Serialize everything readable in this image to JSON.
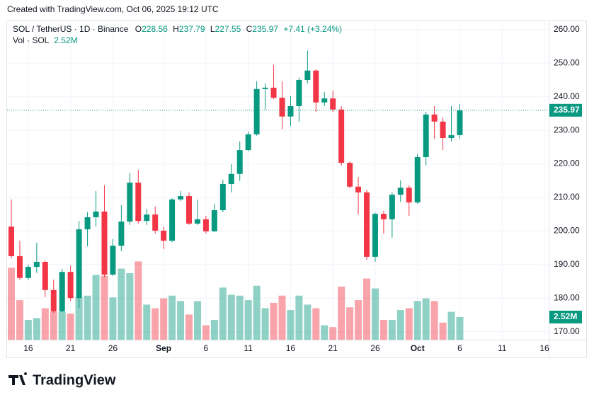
{
  "header": {
    "created": "Created with TradingView.com, Oct 06, 2025 19:12 UTC"
  },
  "brand": "TradingView",
  "chart_data": {
    "type": "candlestick",
    "legend": {
      "symbol": "SOL / TetherUS · 1D · Binance",
      "o": "O",
      "h": "H",
      "l": "L",
      "c": "C",
      "change": "+7.41 (+3.24%)",
      "vol": "Vol · SOL"
    },
    "x": [
      "Aug 14",
      "Aug 15",
      "Aug 16",
      "Aug 17",
      "Aug 18",
      "Aug 19",
      "Aug 20",
      "Aug 21",
      "Aug 22",
      "Aug 23",
      "Aug 24",
      "Aug 25",
      "Aug 26",
      "Aug 27",
      "Aug 28",
      "Aug 29",
      "Aug 30",
      "Aug 31",
      "Sep 1",
      "Sep 2",
      "Sep 3",
      "Sep 4",
      "Sep 5",
      "Sep 6",
      "Sep 7",
      "Sep 8",
      "Sep 9",
      "Sep 10",
      "Sep 11",
      "Sep 12",
      "Sep 13",
      "Sep 14",
      "Sep 15",
      "Sep 16",
      "Sep 17",
      "Sep 18",
      "Sep 19",
      "Sep 20",
      "Sep 21",
      "Sep 22",
      "Sep 23",
      "Sep 24",
      "Sep 25",
      "Sep 26",
      "Sep 27",
      "Sep 28",
      "Sep 29",
      "Sep 30",
      "Oct 1",
      "Oct 2",
      "Oct 3",
      "Oct 4",
      "Oct 5",
      "Oct 6"
    ],
    "open": [
      201.3,
      192.5,
      186.0,
      189.3,
      190.8,
      182.4,
      176.0,
      187.8,
      180.0,
      200.5,
      204.1,
      205.8,
      187.0,
      195.6,
      202.8,
      214.4,
      203.0,
      204.9,
      200.1,
      197.1,
      209.4,
      210.4,
      202.2,
      203.5,
      199.9,
      206.2,
      214.0,
      217.0,
      224.1,
      228.8,
      242.3,
      242.7,
      239.7,
      234.1,
      237.2,
      245.0,
      247.8,
      238.3,
      239.5,
      236.2,
      220.3,
      213.2,
      211.5,
      192.3,
      205.1,
      203.5,
      210.8,
      212.9,
      208.5,
      222.0,
      234.7,
      232.6,
      227.7,
      228.56
    ],
    "high": [
      209.4,
      197.1,
      190.0,
      196.5,
      191.2,
      185.5,
      188.7,
      189.7,
      203.0,
      205.6,
      211.9,
      213.6,
      197.6,
      207.7,
      217.2,
      218.2,
      206.6,
      207.3,
      201.3,
      209.8,
      211.9,
      211.4,
      209.4,
      204.5,
      208.1,
      215.3,
      219.9,
      226.7,
      229.6,
      244.6,
      244.0,
      249.5,
      244.6,
      240.2,
      245.7,
      253.7,
      248.2,
      241.4,
      241.9,
      237.2,
      220.7,
      216.1,
      212.3,
      205.5,
      206.0,
      211.5,
      215.1,
      213.6,
      222.9,
      235.5,
      237.2,
      233.8,
      237.2,
      237.79
    ],
    "low": [
      191.9,
      185.5,
      185.4,
      187.5,
      180.3,
      175.6,
      175.8,
      179.2,
      177.1,
      195.4,
      201.3,
      186.2,
      186.6,
      194.0,
      201.8,
      202.2,
      201.8,
      199.2,
      194.6,
      196.7,
      208.9,
      201.8,
      201.8,
      199.2,
      199.7,
      205.6,
      211.5,
      214.9,
      223.7,
      228.4,
      236.2,
      239.3,
      230.3,
      231.3,
      232.6,
      244.0,
      235.5,
      237.2,
      235.5,
      219.5,
      212.7,
      204.9,
      191.4,
      190.8,
      199.2,
      198.0,
      208.7,
      204.5,
      208.1,
      219.5,
      227.5,
      224.1,
      226.7,
      227.55
    ],
    "close": [
      192.5,
      186.0,
      189.3,
      190.8,
      182.4,
      176.0,
      187.8,
      180.0,
      200.5,
      204.1,
      205.8,
      187.0,
      195.6,
      202.8,
      214.4,
      203.0,
      204.9,
      200.1,
      197.1,
      209.4,
      210.4,
      202.2,
      203.5,
      199.9,
      206.2,
      214.0,
      217.0,
      224.1,
      228.8,
      242.3,
      242.7,
      239.7,
      234.1,
      237.2,
      245.0,
      247.8,
      238.3,
      239.5,
      236.2,
      220.3,
      213.2,
      211.5,
      192.3,
      205.1,
      203.5,
      210.8,
      212.9,
      208.5,
      222.0,
      234.7,
      232.6,
      227.7,
      228.56,
      235.97
    ],
    "volume": [
      8.0,
      4.4,
      2.2,
      2.4,
      3.5,
      3.1,
      3.1,
      2.9,
      4.7,
      4.9,
      7.2,
      7.1,
      4.7,
      7.9,
      7.4,
      8.7,
      3.9,
      3.5,
      4.6,
      4.9,
      4.3,
      2.8,
      4.3,
      1.6,
      2.2,
      5.8,
      5.0,
      4.9,
      4.4,
      6.0,
      3.5,
      4.1,
      4.9,
      3.3,
      4.9,
      3.9,
      3.5,
      1.6,
      1.4,
      5.9,
      3.6,
      4.4,
      6.8,
      5.7,
      2.2,
      2.2,
      3.3,
      3.5,
      4.3,
      4.6,
      4.3,
      1.9,
      3.1,
      2.52
    ],
    "volume_label": "2.52M",
    "volume_lim": [
      0,
      35.4
    ],
    "up_color": "#089981",
    "down_color": "#f23645",
    "xlim": [
      "Aug 14",
      "Oct 16"
    ],
    "xticks": [
      {
        "value": "Aug 16",
        "label": "16"
      },
      {
        "value": "Aug 21",
        "label": "21"
      },
      {
        "value": "Aug 26",
        "label": "26"
      },
      {
        "value": "Sep 1",
        "label": "Sep"
      },
      {
        "value": "Sep 6",
        "label": "6"
      },
      {
        "value": "Sep 11",
        "label": "11"
      },
      {
        "value": "Sep 16",
        "label": "16"
      },
      {
        "value": "Sep 21",
        "label": "21"
      },
      {
        "value": "Sep 26",
        "label": "26"
      },
      {
        "value": "Oct 1",
        "label": "Oct"
      },
      {
        "value": "Oct 6",
        "label": "6"
      },
      {
        "value": "Oct 11",
        "label": "11"
      },
      {
        "value": "Oct 16",
        "label": "16"
      }
    ],
    "ylim": [
      167.6,
      262.5
    ],
    "yticks": [
      {
        "value": 170,
        "label": "170.00"
      },
      {
        "value": 180,
        "label": "180.00"
      },
      {
        "value": 190,
        "label": "190.00"
      },
      {
        "value": 200,
        "label": "200.00"
      },
      {
        "value": 210,
        "label": "210.00"
      },
      {
        "value": 220,
        "label": "220.00"
      },
      {
        "value": 230,
        "label": "230.00"
      },
      {
        "value": 240,
        "label": "240.00"
      },
      {
        "value": 250,
        "label": "250.00"
      },
      {
        "value": 260,
        "label": "260.00"
      }
    ],
    "grid": true
  }
}
